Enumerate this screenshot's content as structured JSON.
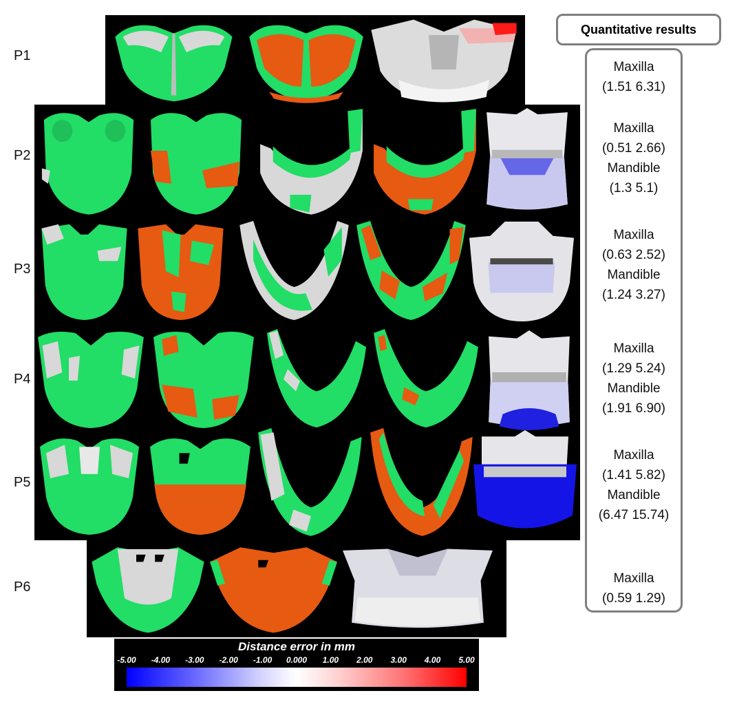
{
  "rows": [
    {
      "label": "P1"
    },
    {
      "label": "P2"
    },
    {
      "label": "P3"
    },
    {
      "label": "P4"
    },
    {
      "label": "P5"
    },
    {
      "label": "P6"
    }
  ],
  "quantitative": {
    "header": "Quantitative results",
    "entries": [
      {
        "lines": [
          "Maxilla",
          "(1.51 6.31)"
        ]
      },
      {
        "lines": [
          "Maxilla",
          "(0.51 2.66)",
          "Mandible",
          "(1.3 5.1)"
        ]
      },
      {
        "lines": [
          "Maxilla",
          "(0.63 2.52)",
          "Mandible",
          "(1.24 3.27)"
        ]
      },
      {
        "lines": [
          "Maxilla",
          "(1.29 5.24)",
          "Mandible",
          "(1.91 6.90)"
        ]
      },
      {
        "lines": [
          "Maxilla",
          "(1.41 5.82)",
          "Mandible",
          "(6.47 15.74)"
        ]
      },
      {
        "lines": [
          "Maxilla",
          "(0.59 1.29)"
        ]
      }
    ]
  },
  "legend": {
    "title": "Distance error in mm",
    "ticks": [
      "-5.00",
      "-4.00",
      "-3.00",
      "-2.00",
      "-1.00",
      "0.000",
      "1.00",
      "2.00",
      "3.00",
      "4.00",
      "5.00"
    ]
  },
  "colors": {
    "green": "#22dd66",
    "orange": "#e65a12",
    "white_surface": "#d8d8d8",
    "blue": "#0000ff",
    "red": "#ff0000"
  }
}
